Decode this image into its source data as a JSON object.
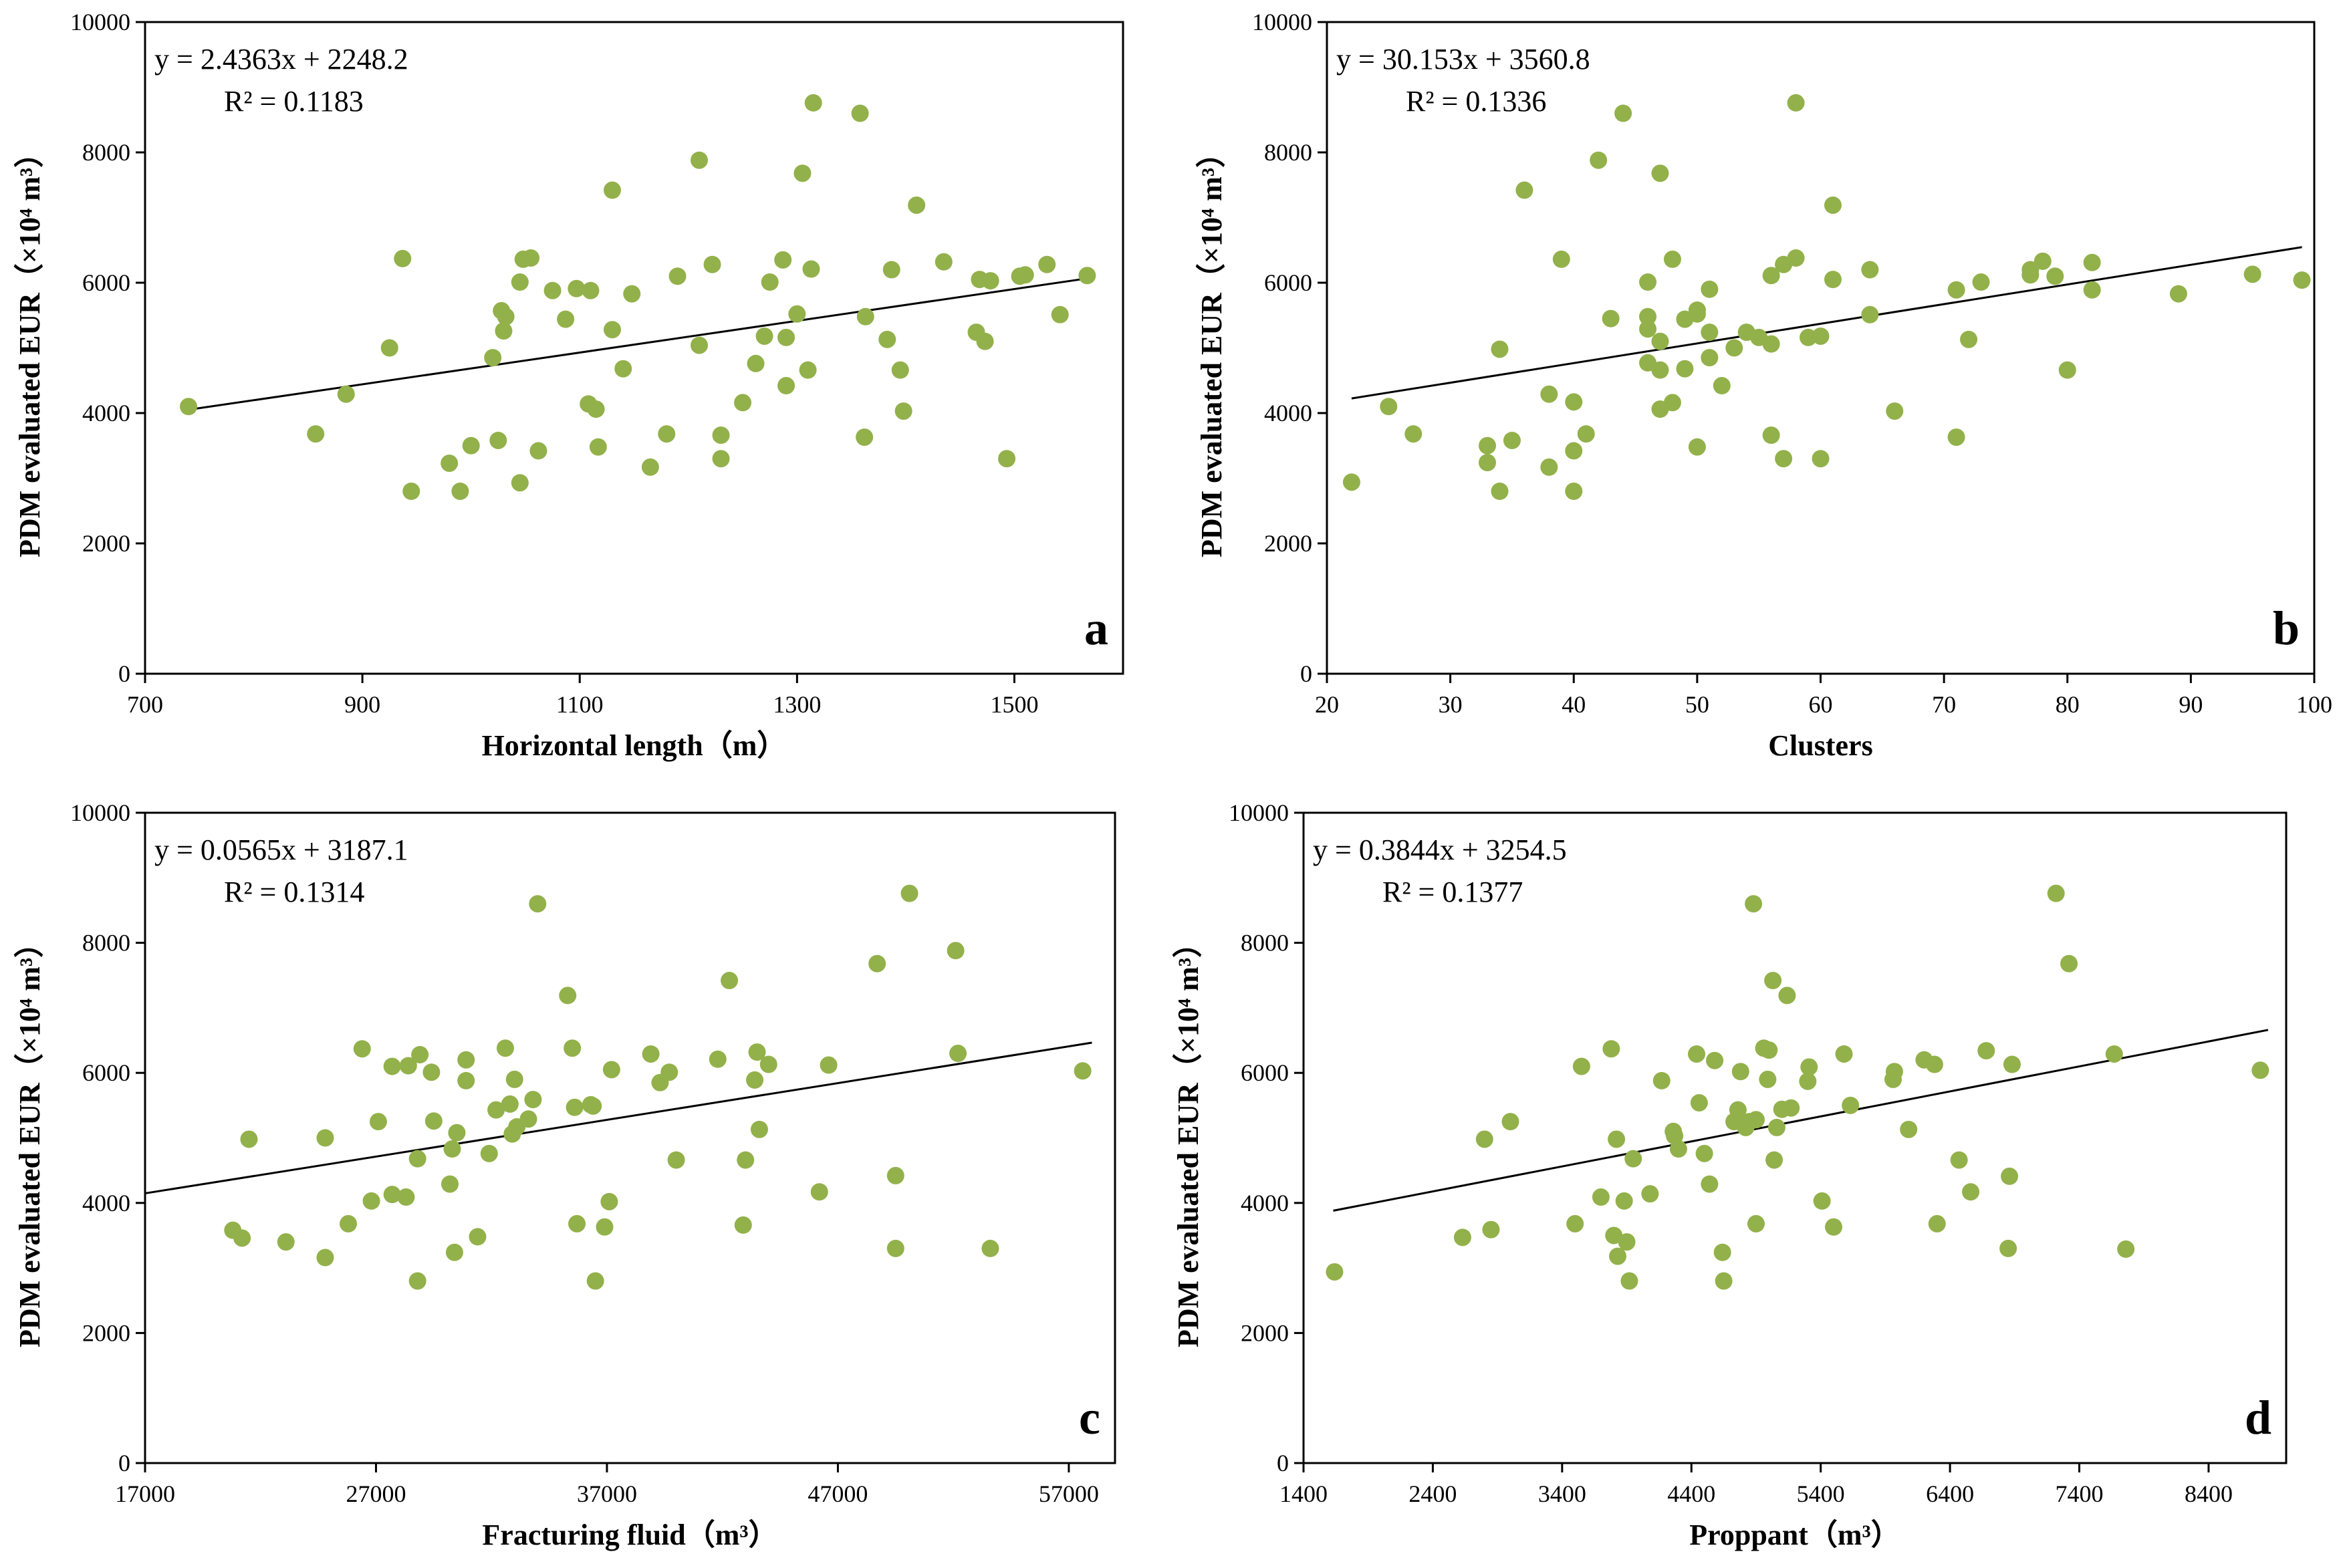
{
  "chart_data": [
    {
      "type": "scatter",
      "panel_label": "a",
      "xlabel": "Horizontal length（m）",
      "ylabel": "PDM evaluated EUR（×10⁴ m³）",
      "xlim": [
        700,
        1600
      ],
      "ylim": [
        0,
        10000
      ],
      "xticks": [
        700,
        900,
        1100,
        1300,
        1500
      ],
      "yticks": [
        0,
        2000,
        4000,
        6000,
        8000,
        10000
      ],
      "equation": "y = 2.4363x + 2248.2",
      "r_squared": "R² = 0.1183",
      "trendline": {
        "slope": 2.4363,
        "intercept": 2248.2,
        "x_range": [
          740,
          1565
        ]
      },
      "points": [
        [
          740,
          4100
        ],
        [
          857,
          3680
        ],
        [
          885,
          4290
        ],
        [
          925,
          5000
        ],
        [
          937,
          6370
        ],
        [
          945,
          2800
        ],
        [
          980,
          3230
        ],
        [
          990,
          2800
        ],
        [
          1000,
          3500
        ],
        [
          1020,
          4850
        ],
        [
          1025,
          3580
        ],
        [
          1028,
          5570
        ],
        [
          1030,
          5260
        ],
        [
          1032,
          5480
        ],
        [
          1045,
          2930
        ],
        [
          1045,
          6010
        ],
        [
          1048,
          6360
        ],
        [
          1055,
          6380
        ],
        [
          1062,
          3420
        ],
        [
          1075,
          5880
        ],
        [
          1087,
          5440
        ],
        [
          1097,
          5910
        ],
        [
          1108,
          4140
        ],
        [
          1110,
          5880
        ],
        [
          1115,
          4060
        ],
        [
          1117,
          3480
        ],
        [
          1130,
          7420
        ],
        [
          1130,
          5280
        ],
        [
          1140,
          4680
        ],
        [
          1148,
          5830
        ],
        [
          1165,
          3170
        ],
        [
          1180,
          3680
        ],
        [
          1190,
          6100
        ],
        [
          1210,
          7880
        ],
        [
          1210,
          5040
        ],
        [
          1222,
          6280
        ],
        [
          1230,
          3300
        ],
        [
          1230,
          3660
        ],
        [
          1250,
          4160
        ],
        [
          1262,
          4760
        ],
        [
          1270,
          5180
        ],
        [
          1275,
          6010
        ],
        [
          1287,
          6350
        ],
        [
          1290,
          4420
        ],
        [
          1290,
          5160
        ],
        [
          1300,
          5520
        ],
        [
          1305,
          7680
        ],
        [
          1310,
          4660
        ],
        [
          1313,
          6210
        ],
        [
          1315,
          8760
        ],
        [
          1358,
          8600
        ],
        [
          1362,
          3630
        ],
        [
          1363,
          5480
        ],
        [
          1383,
          5130
        ],
        [
          1387,
          6200
        ],
        [
          1395,
          4660
        ],
        [
          1398,
          4030
        ],
        [
          1410,
          7190
        ],
        [
          1435,
          6320
        ],
        [
          1465,
          5240
        ],
        [
          1468,
          6050
        ],
        [
          1473,
          5100
        ],
        [
          1478,
          6030
        ],
        [
          1493,
          3300
        ],
        [
          1505,
          6100
        ],
        [
          1510,
          6120
        ],
        [
          1530,
          6280
        ],
        [
          1542,
          5510
        ],
        [
          1567,
          6110
        ]
      ]
    },
    {
      "type": "scatter",
      "panel_label": "b",
      "xlabel": "Clusters",
      "ylabel": "PDM evaluated EUR（×10⁴ m³）",
      "xlim": [
        20,
        100
      ],
      "ylim": [
        0,
        10000
      ],
      "xticks": [
        20,
        30,
        40,
        50,
        60,
        70,
        80,
        90,
        100
      ],
      "yticks": [
        0,
        2000,
        4000,
        6000,
        8000,
        10000
      ],
      "equation": "y = 30.153x + 3560.8",
      "r_squared": "R² = 0.1336",
      "trendline": {
        "slope": 30.153,
        "intercept": 3560.8,
        "x_range": [
          22,
          99
        ]
      },
      "points": [
        [
          22,
          2940
        ],
        [
          25,
          4100
        ],
        [
          27,
          3680
        ],
        [
          33,
          3500
        ],
        [
          33,
          3240
        ],
        [
          34,
          2800
        ],
        [
          34,
          4980
        ],
        [
          35,
          3580
        ],
        [
          36,
          7420
        ],
        [
          38,
          3170
        ],
        [
          38,
          4290
        ],
        [
          39,
          6360
        ],
        [
          40,
          2800
        ],
        [
          40,
          3420
        ],
        [
          40,
          4170
        ],
        [
          41,
          3680
        ],
        [
          42,
          7880
        ],
        [
          43,
          5450
        ],
        [
          44,
          8600
        ],
        [
          46,
          4770
        ],
        [
          46,
          5290
        ],
        [
          46,
          5480
        ],
        [
          46,
          6010
        ],
        [
          47,
          4060
        ],
        [
          47,
          4660
        ],
        [
          47,
          5100
        ],
        [
          47,
          7680
        ],
        [
          48,
          4160
        ],
        [
          48,
          6360
        ],
        [
          49,
          5440
        ],
        [
          49,
          4680
        ],
        [
          50,
          5520
        ],
        [
          50,
          5580
        ],
        [
          50,
          3480
        ],
        [
          51,
          4850
        ],
        [
          51,
          5240
        ],
        [
          51,
          5900
        ],
        [
          52,
          4420
        ],
        [
          53,
          5000
        ],
        [
          54,
          5240
        ],
        [
          55,
          5160
        ],
        [
          56,
          3660
        ],
        [
          56,
          5060
        ],
        [
          56,
          6110
        ],
        [
          57,
          3300
        ],
        [
          57,
          6280
        ],
        [
          58,
          6380
        ],
        [
          58,
          8760
        ],
        [
          59,
          5160
        ],
        [
          60,
          3300
        ],
        [
          60,
          5180
        ],
        [
          61,
          6050
        ],
        [
          61,
          7190
        ],
        [
          64,
          5510
        ],
        [
          64,
          6200
        ],
        [
          66,
          4030
        ],
        [
          71,
          3630
        ],
        [
          71,
          5890
        ],
        [
          72,
          5130
        ],
        [
          73,
          6010
        ],
        [
          77,
          6120
        ],
        [
          77,
          6200
        ],
        [
          78,
          6330
        ],
        [
          79,
          6100
        ],
        [
          80,
          4660
        ],
        [
          82,
          5890
        ],
        [
          82,
          6310
        ],
        [
          89,
          5830
        ],
        [
          95,
          6130
        ],
        [
          99,
          6040
        ]
      ]
    },
    {
      "type": "scatter",
      "panel_label": "c",
      "xlabel": "Fracturing fluid（m³）",
      "ylabel": "PDM evaluated EUR（×10⁴ m³）",
      "xlim": [
        17000,
        59000
      ],
      "ylim": [
        0,
        10000
      ],
      "xticks": [
        17000,
        27000,
        37000,
        47000,
        57000
      ],
      "yticks": [
        0,
        2000,
        4000,
        6000,
        8000,
        10000
      ],
      "equation": "y = 0.0565x + 3187.1",
      "r_squared": "R² = 0.1314",
      "trendline": {
        "slope": 0.0565,
        "intercept": 3187.1,
        "x_range": [
          17000,
          58000
        ]
      },
      "points": [
        [
          20800,
          3580
        ],
        [
          21200,
          3460
        ],
        [
          21500,
          4980
        ],
        [
          23100,
          3400
        ],
        [
          24800,
          3160
        ],
        [
          24800,
          5000
        ],
        [
          25800,
          3680
        ],
        [
          26400,
          6370
        ],
        [
          26800,
          4030
        ],
        [
          27100,
          5250
        ],
        [
          27700,
          4130
        ],
        [
          27700,
          6100
        ],
        [
          28300,
          4090
        ],
        [
          28400,
          6110
        ],
        [
          28800,
          4680
        ],
        [
          28800,
          2800
        ],
        [
          28900,
          6280
        ],
        [
          29400,
          6010
        ],
        [
          29500,
          5260
        ],
        [
          30200,
          4290
        ],
        [
          30300,
          4830
        ],
        [
          30400,
          3240
        ],
        [
          30500,
          5080
        ],
        [
          30900,
          5880
        ],
        [
          30900,
          6200
        ],
        [
          31400,
          3480
        ],
        [
          31900,
          4760
        ],
        [
          32200,
          5430
        ],
        [
          32600,
          6380
        ],
        [
          32800,
          5520
        ],
        [
          32900,
          5060
        ],
        [
          33000,
          5900
        ],
        [
          33100,
          5170
        ],
        [
          33600,
          5290
        ],
        [
          33800,
          5590
        ],
        [
          34000,
          8600
        ],
        [
          35300,
          7190
        ],
        [
          35500,
          6380
        ],
        [
          35600,
          5470
        ],
        [
          35700,
          3680
        ],
        [
          36300,
          5510
        ],
        [
          36400,
          5490
        ],
        [
          36500,
          2800
        ],
        [
          36900,
          3630
        ],
        [
          37100,
          4020
        ],
        [
          37200,
          6050
        ],
        [
          38900,
          6290
        ],
        [
          39300,
          5850
        ],
        [
          39700,
          6010
        ],
        [
          40000,
          4660
        ],
        [
          41800,
          6210
        ],
        [
          42300,
          7420
        ],
        [
          42900,
          3660
        ],
        [
          43000,
          4660
        ],
        [
          43400,
          5890
        ],
        [
          43500,
          6320
        ],
        [
          43600,
          5130
        ],
        [
          44000,
          6130
        ],
        [
          46200,
          4170
        ],
        [
          46600,
          6120
        ],
        [
          48700,
          7680
        ],
        [
          49500,
          3300
        ],
        [
          49500,
          4420
        ],
        [
          50100,
          8760
        ],
        [
          52100,
          7880
        ],
        [
          52200,
          6300
        ],
        [
          53600,
          3300
        ],
        [
          57600,
          6030
        ]
      ]
    },
    {
      "type": "scatter",
      "panel_label": "d",
      "xlabel": "Proppant（m³）",
      "ylabel": "PDM evaluated EUR（×10⁴ m³）",
      "xlim": [
        1400,
        9000
      ],
      "ylim": [
        0,
        10000
      ],
      "xticks": [
        1400,
        2400,
        3400,
        4400,
        5400,
        6400,
        7400,
        8400
      ],
      "yticks": [
        0,
        2000,
        4000,
        6000,
        8000,
        10000
      ],
      "equation": "y = 0.3844x + 3254.5",
      "r_squared": "R² = 0.1377",
      "trendline": {
        "slope": 0.3844,
        "intercept": 3254.5,
        "x_range": [
          1630,
          8860
        ]
      },
      "points": [
        [
          1640,
          2940
        ],
        [
          2630,
          3470
        ],
        [
          2800,
          4980
        ],
        [
          2850,
          3590
        ],
        [
          3000,
          5250
        ],
        [
          3500,
          3680
        ],
        [
          3550,
          6100
        ],
        [
          3700,
          4090
        ],
        [
          3780,
          6370
        ],
        [
          3800,
          3500
        ],
        [
          3820,
          4980
        ],
        [
          3830,
          3180
        ],
        [
          3880,
          4030
        ],
        [
          3900,
          3400
        ],
        [
          3920,
          2800
        ],
        [
          3950,
          4680
        ],
        [
          4080,
          4140
        ],
        [
          4170,
          5880
        ],
        [
          4260,
          5100
        ],
        [
          4270,
          5030
        ],
        [
          4300,
          4830
        ],
        [
          4440,
          6290
        ],
        [
          4460,
          5540
        ],
        [
          4500,
          4760
        ],
        [
          4540,
          4290
        ],
        [
          4580,
          6190
        ],
        [
          4640,
          3240
        ],
        [
          4650,
          2800
        ],
        [
          4730,
          5250
        ],
        [
          4760,
          5430
        ],
        [
          4780,
          6020
        ],
        [
          4820,
          5160
        ],
        [
          4850,
          5250
        ],
        [
          4880,
          8600
        ],
        [
          4900,
          5280
        ],
        [
          4900,
          3680
        ],
        [
          4960,
          6380
        ],
        [
          4990,
          5900
        ],
        [
          5000,
          6350
        ],
        [
          5030,
          7420
        ],
        [
          5040,
          4660
        ],
        [
          5060,
          5160
        ],
        [
          5100,
          5440
        ],
        [
          5140,
          7190
        ],
        [
          5170,
          5460
        ],
        [
          5300,
          5870
        ],
        [
          5310,
          6090
        ],
        [
          5410,
          4030
        ],
        [
          5500,
          3630
        ],
        [
          5580,
          6290
        ],
        [
          5630,
          5500
        ],
        [
          5960,
          5900
        ],
        [
          5970,
          6020
        ],
        [
          6080,
          5130
        ],
        [
          6200,
          6200
        ],
        [
          6280,
          6130
        ],
        [
          6300,
          3680
        ],
        [
          6470,
          4660
        ],
        [
          6560,
          4170
        ],
        [
          6680,
          6340
        ],
        [
          6850,
          3300
        ],
        [
          6860,
          4410
        ],
        [
          6880,
          6130
        ],
        [
          7220,
          8760
        ],
        [
          7320,
          7680
        ],
        [
          7670,
          6290
        ],
        [
          7760,
          3290
        ],
        [
          8800,
          6040
        ]
      ]
    }
  ]
}
